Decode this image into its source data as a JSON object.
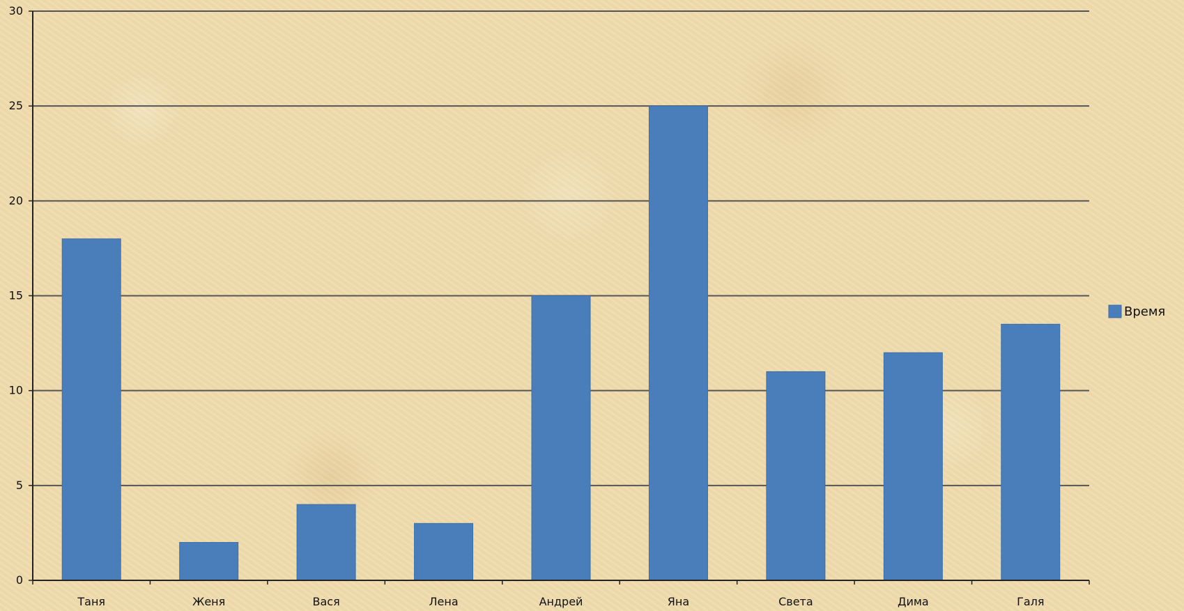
{
  "chart_data": {
    "type": "bar",
    "categories": [
      "Таня",
      "Женя",
      "Вася",
      "Лена",
      "Андрей",
      "Яна",
      "Света",
      "Дима",
      "Галя"
    ],
    "series": [
      {
        "name": "Время",
        "values": [
          18,
          2,
          4,
          3,
          15,
          25,
          11,
          12,
          13.5
        ]
      }
    ],
    "ylim": [
      0,
      30
    ],
    "yticks": [
      0,
      5,
      10,
      15,
      20,
      25,
      30
    ],
    "grid": true,
    "legend_position": "right",
    "colors": {
      "bar": "#4a7ebb",
      "bar_border": "#3b6fab",
      "grid": "#555555",
      "axis": "#222222",
      "text": "#111111"
    }
  }
}
